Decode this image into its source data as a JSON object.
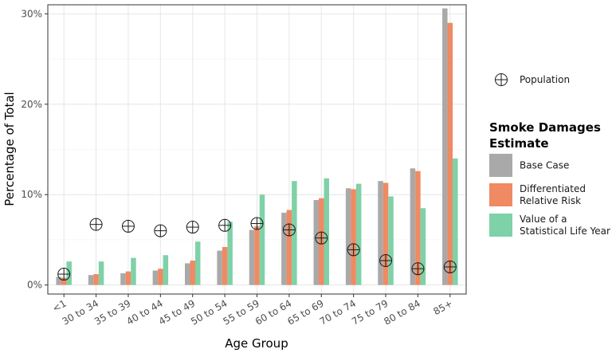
{
  "chart_data": {
    "type": "bar",
    "xlabel": "Age Group",
    "ylabel": "Percentage of Total",
    "ylim": [
      -1,
      31
    ],
    "yticks": [
      0,
      10,
      20,
      30
    ],
    "ytick_labels": [
      "0%",
      "10%",
      "20%",
      "30%"
    ],
    "grid": true,
    "categories": [
      "<1",
      "30 to 34",
      "35 to 39",
      "40 to 44",
      "45 to 49",
      "50 to 54",
      "55 to 59",
      "60 to 64",
      "65 to 69",
      "70 to 74",
      "75 to 79",
      "80 to 84",
      "85+"
    ],
    "series": [
      {
        "name": "Base Case",
        "color": "#a9a9a9",
        "values": [
          0.9,
          1.1,
          1.3,
          1.6,
          2.4,
          3.8,
          6.1,
          8.0,
          9.4,
          10.7,
          11.5,
          12.9,
          30.6
        ]
      },
      {
        "name": "Differentiated Relative Risk",
        "color": "#ef8a62",
        "values": [
          0.8,
          1.2,
          1.5,
          1.8,
          2.7,
          4.2,
          6.5,
          8.3,
          9.6,
          10.6,
          11.3,
          12.6,
          29.0
        ]
      },
      {
        "name": "Value of a Statistical Life Year",
        "color": "#7fd1a8",
        "values": [
          2.6,
          2.6,
          3.0,
          3.3,
          4.8,
          7.0,
          10.0,
          11.5,
          11.8,
          11.2,
          9.8,
          8.5,
          14.0
        ]
      }
    ],
    "points": {
      "name": "Population",
      "values": [
        1.2,
        6.7,
        6.5,
        6.0,
        6.4,
        6.6,
        6.8,
        6.1,
        5.2,
        3.9,
        2.7,
        1.8,
        2.0
      ]
    },
    "legend": {
      "placement": "right",
      "point_label": "Population",
      "title_lines": [
        "Smoke Damages",
        "Estimate"
      ],
      "entries": [
        {
          "lines": [
            "Base Case"
          ],
          "color": "#a9a9a9"
        },
        {
          "lines": [
            "Differentiated",
            "Relative Risk"
          ],
          "color": "#ef8a62"
        },
        {
          "lines": [
            "Value of a",
            "Statistical Life Year"
          ],
          "color": "#7fd1a8"
        }
      ]
    }
  }
}
